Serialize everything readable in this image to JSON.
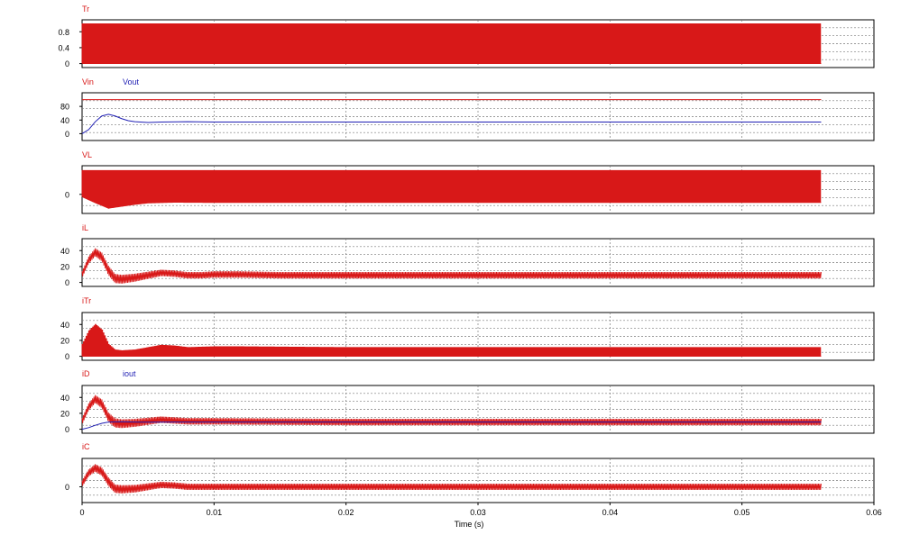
{
  "colors": {
    "primary": "#d81818",
    "secondary": "#1f1fb4",
    "grid": "#7a7a7a",
    "frame": "#000000"
  },
  "chart_data": [
    {
      "type": "line",
      "panel": "Tr",
      "series": [
        {
          "name": "Tr",
          "color": "#d81818",
          "kind": "square",
          "low": 0,
          "high": 1,
          "x_end": 0.056
        }
      ],
      "yticks": [
        0,
        0.4,
        0.8
      ],
      "ylim": [
        -0.1,
        1.1
      ],
      "xlim": [
        0,
        0.06
      ]
    },
    {
      "type": "line",
      "panel": "Vin/Vout",
      "series": [
        {
          "name": "Vin",
          "color": "#d81818",
          "kind": "constant",
          "value": 100,
          "x_end": 0.056
        },
        {
          "name": "Vout",
          "color": "#1f1fb4",
          "kind": "curve",
          "points": [
            [
              0,
              0
            ],
            [
              0.0005,
              12
            ],
            [
              0.001,
              35
            ],
            [
              0.0015,
              52
            ],
            [
              0.002,
              57
            ],
            [
              0.0025,
              52
            ],
            [
              0.003,
              44
            ],
            [
              0.0035,
              38
            ],
            [
              0.004,
              35
            ],
            [
              0.005,
              33
            ],
            [
              0.006,
              34
            ],
            [
              0.008,
              35
            ],
            [
              0.01,
              34
            ],
            [
              0.015,
              34
            ],
            [
              0.02,
              34
            ],
            [
              0.03,
              34
            ],
            [
              0.04,
              34
            ],
            [
              0.05,
              34
            ],
            [
              0.056,
              34
            ]
          ]
        }
      ],
      "yticks": [
        0,
        40,
        80
      ],
      "ylim": [
        -20,
        120
      ],
      "xlim": [
        0,
        0.06
      ]
    },
    {
      "type": "line",
      "panel": "VL",
      "series": [
        {
          "name": "VL",
          "color": "#d81818",
          "kind": "switching",
          "upper": [
            [
              0,
              100
            ],
            [
              0.056,
              100
            ]
          ],
          "lower": [
            [
              0,
              -10
            ],
            [
              0.001,
              -35
            ],
            [
              0.002,
              -58
            ],
            [
              0.003,
              -50
            ],
            [
              0.004,
              -42
            ],
            [
              0.005,
              -36
            ],
            [
              0.007,
              -33
            ],
            [
              0.01,
              -34
            ],
            [
              0.056,
              -34
            ]
          ]
        }
      ],
      "yticks": [
        0
      ],
      "ylim": [
        -80,
        120
      ],
      "xlim": [
        0,
        0.06
      ]
    },
    {
      "type": "line",
      "panel": "iL",
      "series": [
        {
          "name": "iL",
          "color": "#d81818",
          "kind": "ripple",
          "center": [
            [
              0,
              10
            ],
            [
              0.0005,
              28
            ],
            [
              0.001,
              38
            ],
            [
              0.0015,
              32
            ],
            [
              0.002,
              15
            ],
            [
              0.0025,
              5
            ],
            [
              0.003,
              4
            ],
            [
              0.004,
              6
            ],
            [
              0.005,
              9
            ],
            [
              0.006,
              12
            ],
            [
              0.007,
              11
            ],
            [
              0.008,
              9
            ],
            [
              0.009,
              9
            ],
            [
              0.01,
              10
            ],
            [
              0.012,
              10
            ],
            [
              0.015,
              9
            ],
            [
              0.02,
              9
            ],
            [
              0.03,
              9
            ],
            [
              0.04,
              9
            ],
            [
              0.05,
              9
            ],
            [
              0.056,
              9
            ]
          ],
          "ripple": [
            [
              0,
              4
            ],
            [
              0.002,
              6
            ],
            [
              0.006,
              4
            ],
            [
              0.056,
              4
            ]
          ]
        }
      ],
      "yticks": [
        0,
        20,
        40
      ],
      "ylim": [
        -5,
        55
      ],
      "xlim": [
        0,
        0.06
      ]
    },
    {
      "type": "line",
      "panel": "iTr",
      "series": [
        {
          "name": "iTr",
          "color": "#d81818",
          "kind": "pulses",
          "envelope": [
            [
              0,
              15
            ],
            [
              0.0005,
              32
            ],
            [
              0.001,
              40
            ],
            [
              0.0015,
              33
            ],
            [
              0.002,
              15
            ],
            [
              0.0025,
              8
            ],
            [
              0.003,
              7
            ],
            [
              0.004,
              8
            ],
            [
              0.005,
              11
            ],
            [
              0.006,
              14
            ],
            [
              0.007,
              13
            ],
            [
              0.008,
              11
            ],
            [
              0.01,
              12
            ],
            [
              0.012,
              12
            ],
            [
              0.02,
              11
            ],
            [
              0.03,
              11
            ],
            [
              0.04,
              11
            ],
            [
              0.05,
              11
            ],
            [
              0.056,
              11
            ]
          ]
        }
      ],
      "yticks": [
        0,
        20,
        40
      ],
      "ylim": [
        -5,
        55
      ],
      "xlim": [
        0,
        0.06
      ]
    },
    {
      "type": "line",
      "panel": "iD/iout",
      "series": [
        {
          "name": "iD",
          "color": "#d81818",
          "kind": "ripple",
          "center": [
            [
              0,
              10
            ],
            [
              0.0005,
              28
            ],
            [
              0.001,
              38
            ],
            [
              0.0015,
              32
            ],
            [
              0.002,
              15
            ],
            [
              0.0025,
              8
            ],
            [
              0.003,
              7
            ],
            [
              0.004,
              8
            ],
            [
              0.005,
              10
            ],
            [
              0.006,
              12
            ],
            [
              0.007,
              11
            ],
            [
              0.008,
              10
            ],
            [
              0.01,
              10
            ],
            [
              0.02,
              9
            ],
            [
              0.03,
              9
            ],
            [
              0.04,
              9
            ],
            [
              0.05,
              9
            ],
            [
              0.056,
              9
            ]
          ],
          "ripple": [
            [
              0,
              4
            ],
            [
              0.002,
              6
            ],
            [
              0.006,
              4
            ],
            [
              0.056,
              4
            ]
          ]
        },
        {
          "name": "iout",
          "color": "#1f1fb4",
          "kind": "curve",
          "points": [
            [
              0,
              0
            ],
            [
              0.0005,
              2
            ],
            [
              0.001,
              5
            ],
            [
              0.0015,
              7.5
            ],
            [
              0.002,
              9
            ],
            [
              0.003,
              9.5
            ],
            [
              0.004,
              9
            ],
            [
              0.005,
              8.8
            ],
            [
              0.007,
              9
            ],
            [
              0.01,
              9
            ],
            [
              0.02,
              9
            ],
            [
              0.03,
              9
            ],
            [
              0.04,
              9
            ],
            [
              0.05,
              9
            ],
            [
              0.056,
              9
            ]
          ]
        }
      ],
      "yticks": [
        0,
        20,
        40
      ],
      "ylim": [
        -5,
        55
      ],
      "xlim": [
        0,
        0.06
      ]
    },
    {
      "type": "line",
      "panel": "iC",
      "series": [
        {
          "name": "iC",
          "color": "#d81818",
          "kind": "ripple",
          "center": [
            [
              0,
              5
            ],
            [
              0.0005,
              22
            ],
            [
              0.001,
              30
            ],
            [
              0.0015,
              24
            ],
            [
              0.002,
              8
            ],
            [
              0.0025,
              -3
            ],
            [
              0.003,
              -4
            ],
            [
              0.004,
              -3
            ],
            [
              0.005,
              0
            ],
            [
              0.006,
              3
            ],
            [
              0.007,
              2
            ],
            [
              0.008,
              0
            ],
            [
              0.01,
              0
            ],
            [
              0.02,
              0
            ],
            [
              0.03,
              0
            ],
            [
              0.04,
              0
            ],
            [
              0.05,
              0
            ],
            [
              0.056,
              0
            ]
          ],
          "ripple": [
            [
              0,
              5
            ],
            [
              0.002,
              7
            ],
            [
              0.006,
              5
            ],
            [
              0.056,
              5
            ]
          ]
        }
      ],
      "yticks": [
        0
      ],
      "ylim": [
        -25,
        45
      ],
      "xlim": [
        0,
        0.06
      ]
    }
  ],
  "x_axis": {
    "label": "Time (s)",
    "ticks": [
      0,
      0.01,
      0.02,
      0.03,
      0.04,
      0.05,
      0.06
    ],
    "tick_labels": [
      "0",
      "0.01",
      "0.02",
      "0.03",
      "0.04",
      "0.05",
      "0.06"
    ],
    "xlim": [
      0,
      0.06
    ]
  }
}
